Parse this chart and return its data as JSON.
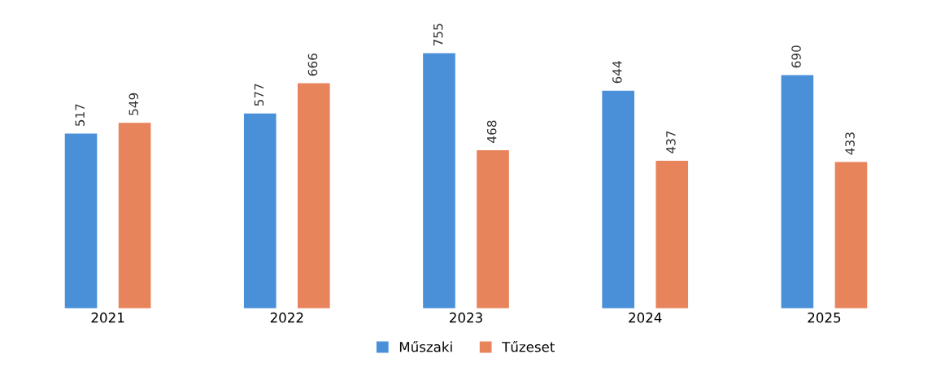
{
  "chart_data": {
    "type": "bar",
    "categories": [
      "2021",
      "2022",
      "2023",
      "2024",
      "2025"
    ],
    "series": [
      {
        "name": "Műszaki",
        "color": "#4a90d9",
        "values": [
          517,
          577,
          755,
          644,
          690
        ]
      },
      {
        "name": "Tűzeset",
        "color": "#e8845c",
        "values": [
          549,
          666,
          468,
          437,
          433
        ]
      }
    ],
    "data_labels": true,
    "legend": "bottom",
    "grid": false
  }
}
